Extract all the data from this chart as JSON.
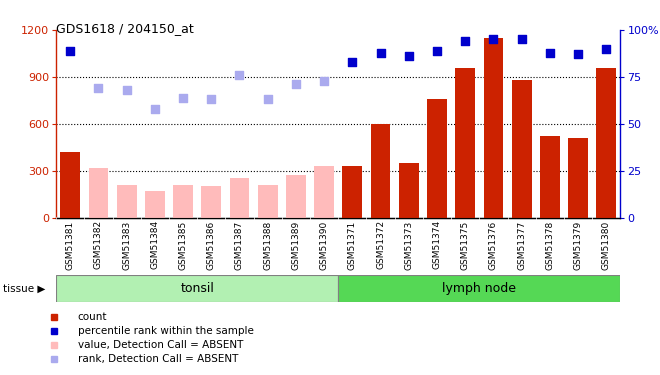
{
  "title": "GDS1618 / 204150_at",
  "samples": [
    "GSM51381",
    "GSM51382",
    "GSM51383",
    "GSM51384",
    "GSM51385",
    "GSM51386",
    "GSM51387",
    "GSM51388",
    "GSM51389",
    "GSM51390",
    "GSM51371",
    "GSM51372",
    "GSM51373",
    "GSM51374",
    "GSM51375",
    "GSM51376",
    "GSM51377",
    "GSM51378",
    "GSM51379",
    "GSM51380"
  ],
  "bar_values": [
    420,
    320,
    210,
    170,
    210,
    200,
    255,
    210,
    270,
    330,
    330,
    600,
    350,
    760,
    960,
    1150,
    880,
    520,
    510,
    960
  ],
  "absent_mask": [
    false,
    true,
    true,
    true,
    true,
    true,
    true,
    true,
    true,
    true,
    false,
    false,
    false,
    false,
    false,
    false,
    false,
    false,
    false,
    false
  ],
  "rank_values": [
    89,
    69,
    68,
    58,
    64,
    63,
    76,
    63,
    71,
    73,
    83,
    88,
    86,
    89,
    94,
    95,
    95,
    88,
    87,
    90
  ],
  "rank_absent_mask": [
    false,
    true,
    true,
    true,
    true,
    true,
    true,
    true,
    true,
    true,
    false,
    false,
    false,
    false,
    false,
    false,
    false,
    false,
    false,
    false
  ],
  "ylim": [
    0,
    1200
  ],
  "y2lim": [
    0,
    100
  ],
  "yticks": [
    0,
    300,
    600,
    900,
    1200
  ],
  "y2ticks": [
    0,
    25,
    50,
    75,
    100
  ],
  "tissue_groups": [
    {
      "label": "tonsil",
      "start": 0,
      "end": 10,
      "color": "#b2f0b2",
      "darker": "#80e080"
    },
    {
      "label": "lymph node",
      "start": 10,
      "end": 20,
      "color": "#55d855",
      "darker": "#33c833"
    }
  ],
  "bar_color_present": "#cc2200",
  "bar_color_absent": "#ffbbbb",
  "rank_color_present": "#0000cc",
  "rank_color_absent": "#aaaaee",
  "plot_bg": "#ffffff",
  "xtick_bg": "#d8d8d8"
}
